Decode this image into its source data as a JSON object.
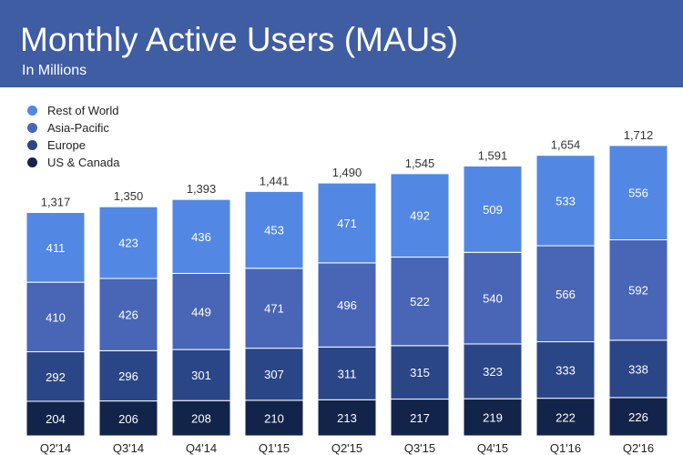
{
  "header": {
    "title": "Monthly Active Users (MAUs)",
    "subtitle": "In Millions"
  },
  "colors": {
    "header_bg": "#3f5da3",
    "US & Canada": "#13244a",
    "Europe": "#2b4686",
    "Asia-Pacific": "#4866b5",
    "Rest of World": "#5288e3"
  },
  "legend": [
    {
      "label": "Rest of World",
      "color": "#5288e3"
    },
    {
      "label": "Asia-Pacific",
      "color": "#4866b5"
    },
    {
      "label": "Europe",
      "color": "#2b4686"
    },
    {
      "label": "US & Canada",
      "color": "#13244a"
    }
  ],
  "chart_data": {
    "type": "bar",
    "stacked": true,
    "title": "Monthly Active Users (MAUs)",
    "subtitle": "In Millions",
    "categories": [
      "Q2'14",
      "Q3'14",
      "Q4'14",
      "Q1'15",
      "Q2'15",
      "Q3'15",
      "Q4'15",
      "Q1'16",
      "Q2'16"
    ],
    "series": [
      {
        "name": "US & Canada",
        "values": [
          204,
          206,
          208,
          210,
          213,
          217,
          219,
          222,
          226
        ]
      },
      {
        "name": "Europe",
        "values": [
          292,
          296,
          301,
          307,
          311,
          315,
          323,
          333,
          338
        ]
      },
      {
        "name": "Asia-Pacific",
        "values": [
          410,
          426,
          449,
          471,
          496,
          522,
          540,
          566,
          592
        ]
      },
      {
        "name": "Rest of World",
        "values": [
          411,
          423,
          436,
          453,
          471,
          492,
          509,
          533,
          556
        ]
      }
    ],
    "totals": [
      "1,317",
      "1,350",
      "1,393",
      "1,441",
      "1,490",
      "1,545",
      "1,591",
      "1,654",
      "1,712"
    ],
    "legend_position": "top-left",
    "grid": false
  }
}
